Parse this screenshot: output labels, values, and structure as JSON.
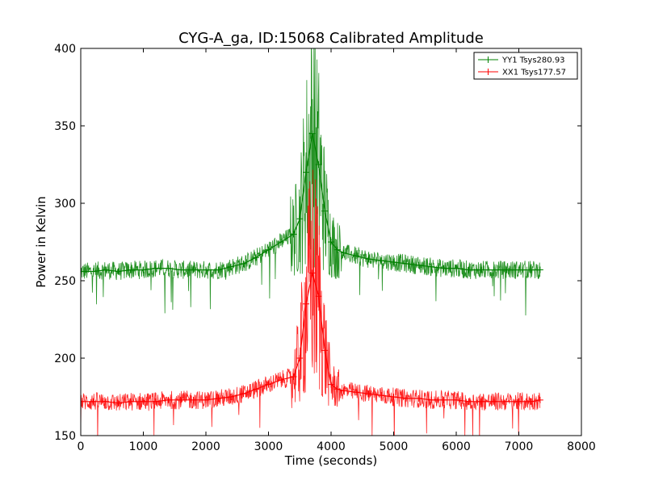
{
  "chart_data": {
    "type": "line",
    "title": "CYG-A_ga, ID:15068 Calibrated Amplitude",
    "xlabel": "Time (seconds)",
    "ylabel": "Power in Kelvin",
    "xlim": [
      0,
      8000
    ],
    "ylim": [
      150,
      400
    ],
    "xticks": [
      0,
      1000,
      2000,
      3000,
      4000,
      5000,
      6000,
      7000,
      8000
    ],
    "yticks": [
      150,
      200,
      250,
      300,
      350,
      400
    ],
    "grid": false,
    "legend_position": "top-right",
    "marker": "+",
    "series": [
      {
        "name": "YY1 Tsys280.93",
        "color": "#008000",
        "x": [
          0,
          200,
          400,
          600,
          800,
          1000,
          1200,
          1400,
          1600,
          1800,
          2000,
          2200,
          2400,
          2600,
          2800,
          3000,
          3200,
          3400,
          3500,
          3600,
          3700,
          3800,
          3900,
          4000,
          4100,
          4200,
          4400,
          4600,
          4800,
          5000,
          5200,
          5400,
          5600,
          5800,
          6000,
          6200,
          6400,
          6600,
          6800,
          7000,
          7200,
          7340
        ],
        "y": [
          256,
          256,
          257,
          256,
          257,
          257,
          258,
          258,
          257,
          257,
          257,
          257,
          259,
          261,
          265,
          270,
          275,
          280,
          290,
          320,
          345,
          325,
          295,
          275,
          270,
          268,
          266,
          264,
          263,
          262,
          261,
          260,
          259,
          258,
          258,
          257,
          257,
          257,
          257,
          257,
          257,
          257
        ]
      },
      {
        "name": "XX1 Tsys177.57",
        "color": "#ff0000",
        "x": [
          0,
          200,
          400,
          600,
          800,
          1000,
          1200,
          1400,
          1600,
          1800,
          2000,
          2200,
          2400,
          2600,
          2800,
          3000,
          3200,
          3400,
          3500,
          3600,
          3700,
          3800,
          3900,
          4000,
          4100,
          4200,
          4400,
          4600,
          4800,
          5000,
          5200,
          5400,
          5600,
          5800,
          6000,
          6200,
          6400,
          6600,
          6800,
          7000,
          7200,
          7340
        ],
        "y": [
          172,
          172,
          172,
          171,
          172,
          172,
          172,
          173,
          173,
          173,
          173,
          174,
          175,
          177,
          180,
          183,
          186,
          188,
          200,
          235,
          255,
          240,
          205,
          183,
          180,
          179,
          178,
          177,
          176,
          175,
          174,
          174,
          173,
          173,
          173,
          172,
          172,
          172,
          172,
          172,
          172,
          173
        ]
      }
    ]
  }
}
